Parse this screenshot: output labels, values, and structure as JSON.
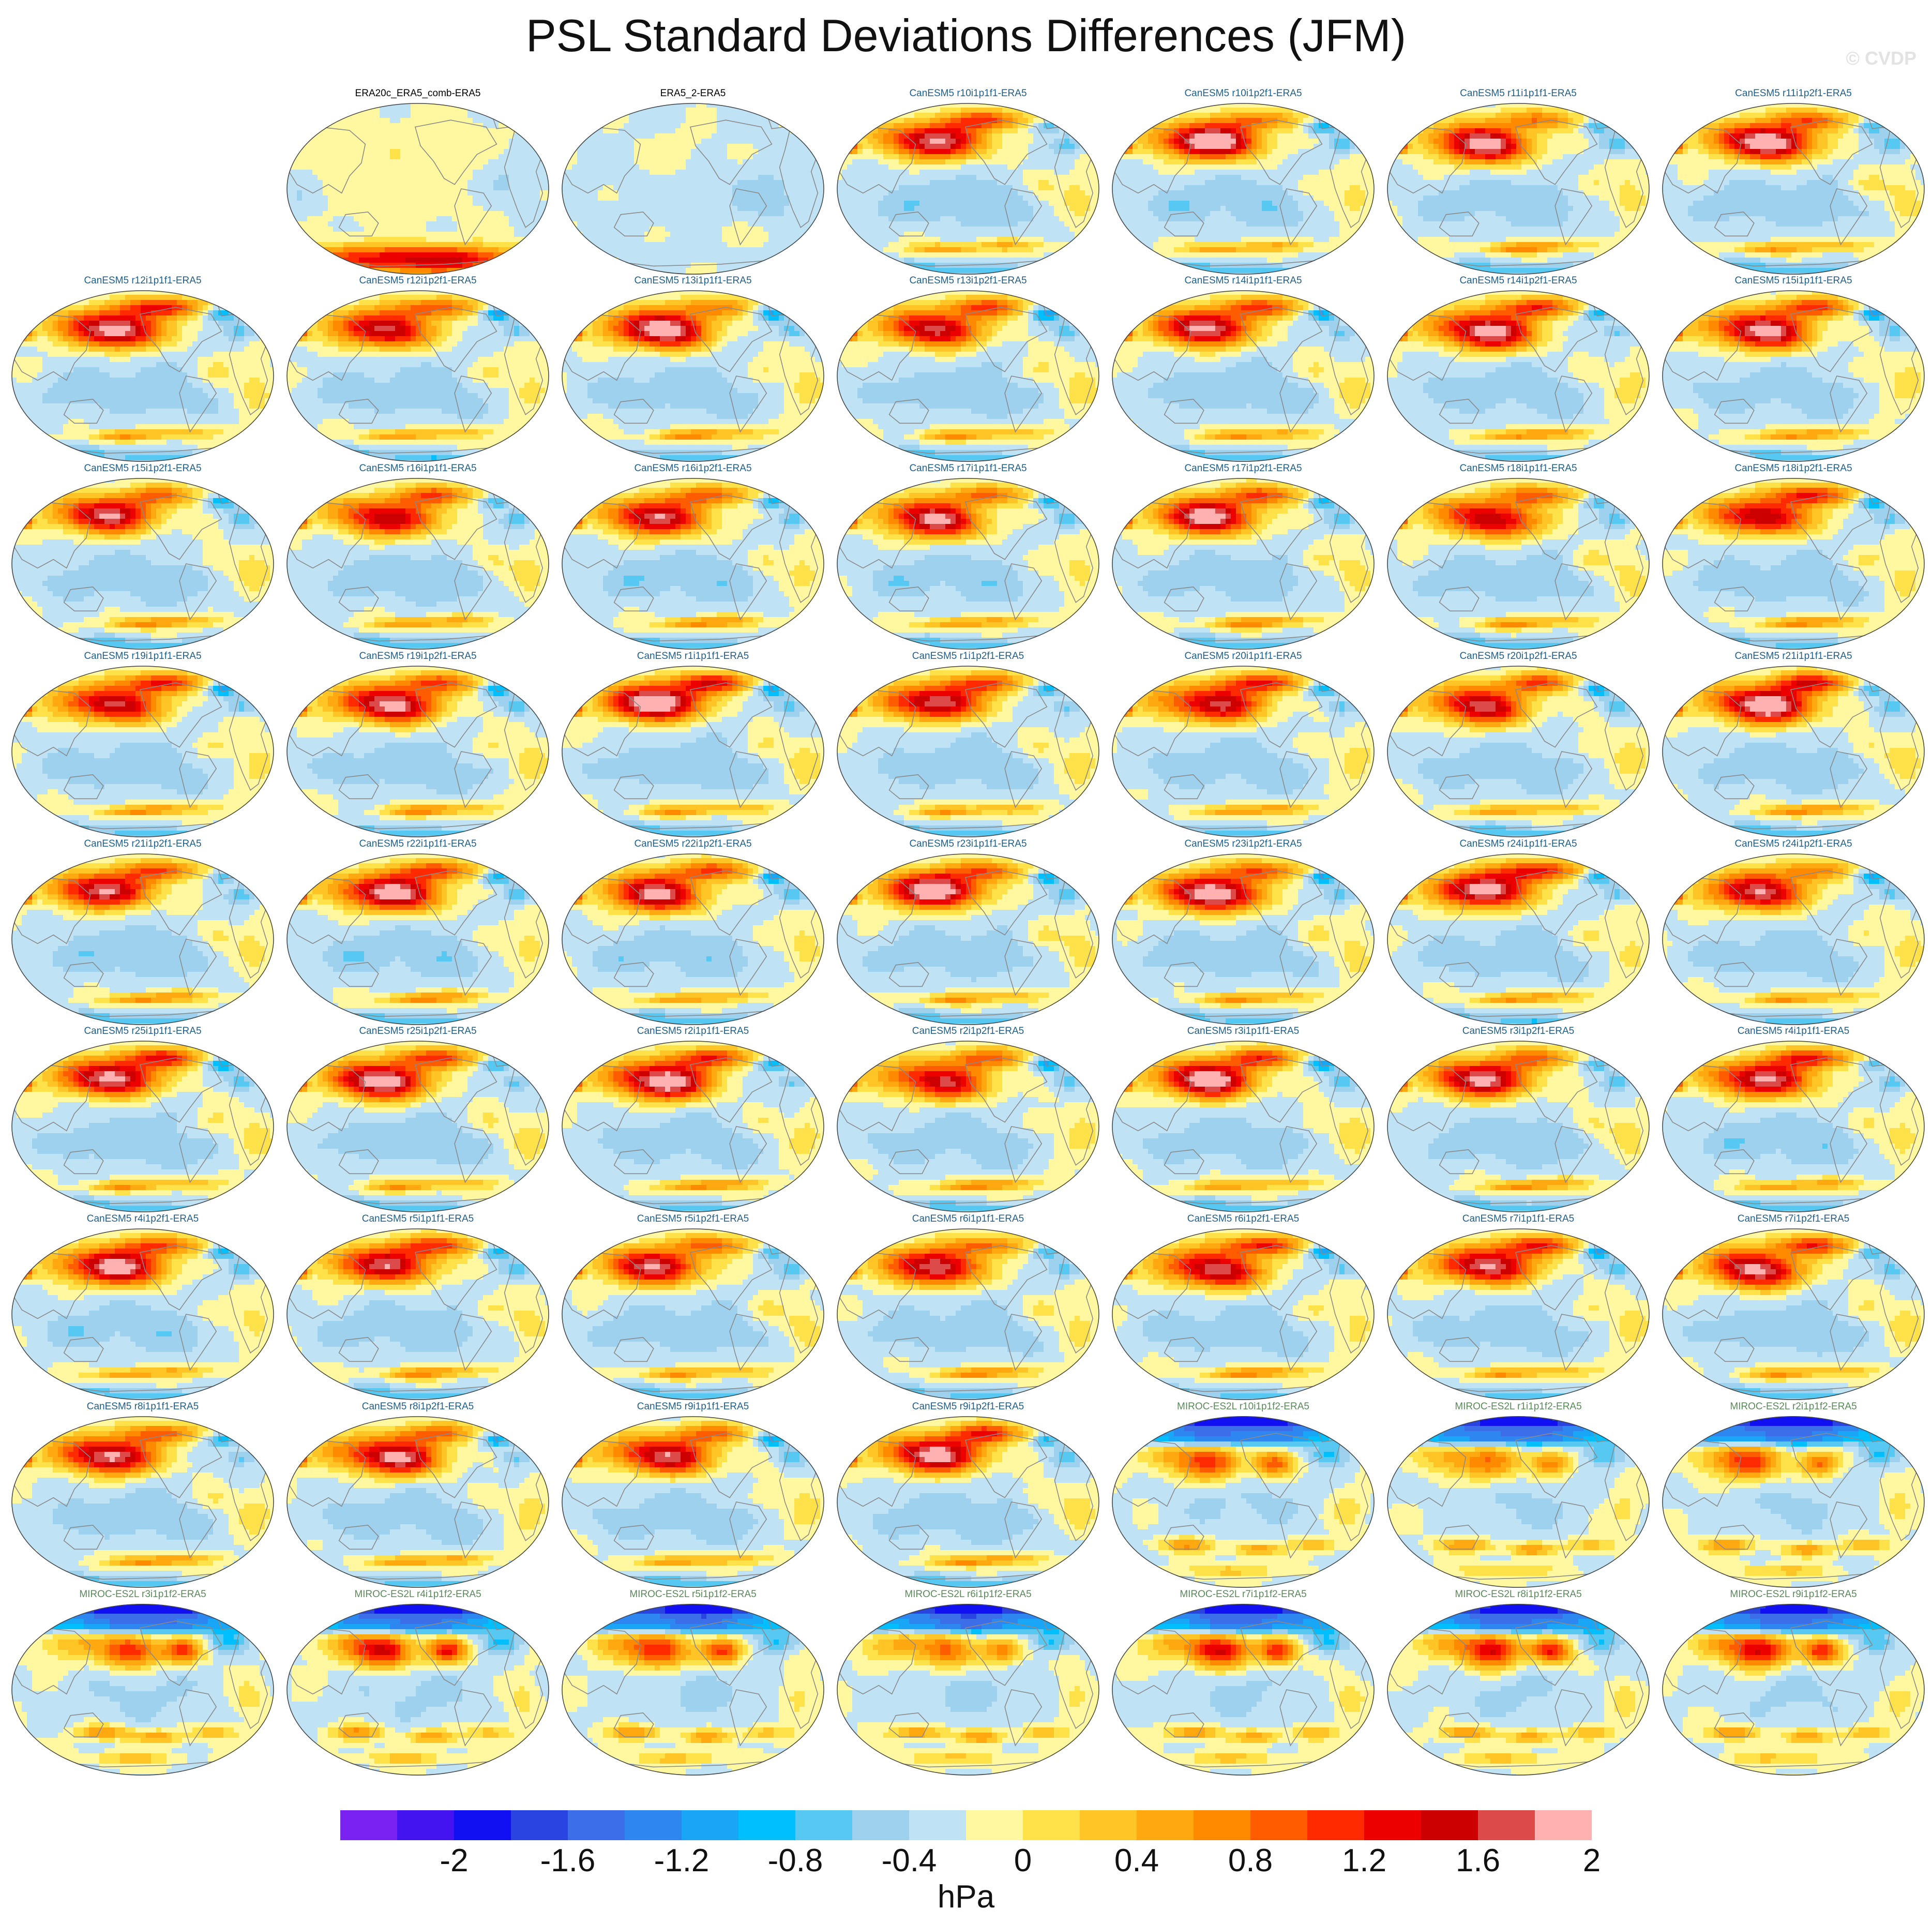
{
  "title": "PSL Standard Deviations Differences (JFM)",
  "watermark": "© CVDP",
  "colorbar": {
    "colors": [
      "#7a22f2",
      "#4414f0",
      "#1010f2",
      "#2a44e2",
      "#3b6ee8",
      "#2e86f0",
      "#1aa6f6",
      "#00bfff",
      "#56c8f2",
      "#9dd1ee",
      "#bfe3f5",
      "#fff8a0",
      "#ffe14a",
      "#ffc426",
      "#ffa810",
      "#ff8a00",
      "#ff5c00",
      "#ff2a00",
      "#ec0000",
      "#cc0000",
      "#dc4a4a",
      "#ffb0b0"
    ],
    "tick_labels": [
      "-2",
      "-1.6",
      "-1.2",
      "-0.8",
      "-0.4",
      "0",
      "0.4",
      "0.8",
      "1.2",
      "1.6",
      "2"
    ],
    "unit": "hPa"
  },
  "panels": [
    {
      "title": "ERA20c_ERA5_comb-ERA5",
      "kind": "obs1"
    },
    {
      "title": "ERA5_2-ERA5",
      "kind": "obs2"
    },
    {
      "title": "CanESM5 r10i1p1f1-ERA5",
      "kind": "can"
    },
    {
      "title": "CanESM5 r10i1p2f1-ERA5",
      "kind": "can"
    },
    {
      "title": "CanESM5 r11i1p1f1-ERA5",
      "kind": "can"
    },
    {
      "title": "CanESM5 r11i1p2f1-ERA5",
      "kind": "can"
    },
    {
      "title": "CanESM5 r12i1p1f1-ERA5",
      "kind": "can"
    },
    {
      "title": "CanESM5 r12i1p2f1-ERA5",
      "kind": "can"
    },
    {
      "title": "CanESM5 r13i1p1f1-ERA5",
      "kind": "can"
    },
    {
      "title": "CanESM5 r13i1p2f1-ERA5",
      "kind": "can"
    },
    {
      "title": "CanESM5 r14i1p1f1-ERA5",
      "kind": "can"
    },
    {
      "title": "CanESM5 r14i1p2f1-ERA5",
      "kind": "can"
    },
    {
      "title": "CanESM5 r15i1p1f1-ERA5",
      "kind": "can"
    },
    {
      "title": "CanESM5 r15i1p2f1-ERA5",
      "kind": "can"
    },
    {
      "title": "CanESM5 r16i1p1f1-ERA5",
      "kind": "can"
    },
    {
      "title": "CanESM5 r16i1p2f1-ERA5",
      "kind": "can"
    },
    {
      "title": "CanESM5 r17i1p1f1-ERA5",
      "kind": "can"
    },
    {
      "title": "CanESM5 r17i1p2f1-ERA5",
      "kind": "can"
    },
    {
      "title": "CanESM5 r18i1p1f1-ERA5",
      "kind": "can"
    },
    {
      "title": "CanESM5 r18i1p2f1-ERA5",
      "kind": "can"
    },
    {
      "title": "CanESM5 r19i1p1f1-ERA5",
      "kind": "can"
    },
    {
      "title": "CanESM5 r19i1p2f1-ERA5",
      "kind": "can"
    },
    {
      "title": "CanESM5 r1i1p1f1-ERA5",
      "kind": "can"
    },
    {
      "title": "CanESM5 r1i1p2f1-ERA5",
      "kind": "can"
    },
    {
      "title": "CanESM5 r20i1p1f1-ERA5",
      "kind": "can"
    },
    {
      "title": "CanESM5 r20i1p2f1-ERA5",
      "kind": "can"
    },
    {
      "title": "CanESM5 r21i1p1f1-ERA5",
      "kind": "can"
    },
    {
      "title": "CanESM5 r21i1p2f1-ERA5",
      "kind": "can"
    },
    {
      "title": "CanESM5 r22i1p1f1-ERA5",
      "kind": "can"
    },
    {
      "title": "CanESM5 r22i1p2f1-ERA5",
      "kind": "can"
    },
    {
      "title": "CanESM5 r23i1p1f1-ERA5",
      "kind": "can"
    },
    {
      "title": "CanESM5 r23i1p2f1-ERA5",
      "kind": "can"
    },
    {
      "title": "CanESM5 r24i1p1f1-ERA5",
      "kind": "can"
    },
    {
      "title": "CanESM5 r24i1p2f1-ERA5",
      "kind": "can"
    },
    {
      "title": "CanESM5 r25i1p1f1-ERA5",
      "kind": "can"
    },
    {
      "title": "CanESM5 r25i1p2f1-ERA5",
      "kind": "can"
    },
    {
      "title": "CanESM5 r2i1p1f1-ERA5",
      "kind": "can"
    },
    {
      "title": "CanESM5 r2i1p2f1-ERA5",
      "kind": "can"
    },
    {
      "title": "CanESM5 r3i1p1f1-ERA5",
      "kind": "can"
    },
    {
      "title": "CanESM5 r3i1p2f1-ERA5",
      "kind": "can"
    },
    {
      "title": "CanESM5 r4i1p1f1-ERA5",
      "kind": "can"
    },
    {
      "title": "CanESM5 r4i1p2f1-ERA5",
      "kind": "can"
    },
    {
      "title": "CanESM5 r5i1p1f1-ERA5",
      "kind": "can"
    },
    {
      "title": "CanESM5 r5i1p2f1-ERA5",
      "kind": "can"
    },
    {
      "title": "CanESM5 r6i1p1f1-ERA5",
      "kind": "can"
    },
    {
      "title": "CanESM5 r6i1p2f1-ERA5",
      "kind": "can"
    },
    {
      "title": "CanESM5 r7i1p1f1-ERA5",
      "kind": "can"
    },
    {
      "title": "CanESM5 r7i1p2f1-ERA5",
      "kind": "can"
    },
    {
      "title": "CanESM5 r8i1p1f1-ERA5",
      "kind": "can"
    },
    {
      "title": "CanESM5 r8i1p2f1-ERA5",
      "kind": "can"
    },
    {
      "title": "CanESM5 r9i1p1f1-ERA5",
      "kind": "can"
    },
    {
      "title": "CanESM5 r9i1p2f1-ERA5",
      "kind": "can"
    },
    {
      "title": "MIROC-ES2L r10i1p1f2-ERA5",
      "kind": "miroc"
    },
    {
      "title": "MIROC-ES2L r1i1p1f2-ERA5",
      "kind": "miroc"
    },
    {
      "title": "MIROC-ES2L r2i1p1f2-ERA5",
      "kind": "miroc"
    },
    {
      "title": "MIROC-ES2L r3i1p1f2-ERA5",
      "kind": "miroc"
    },
    {
      "title": "MIROC-ES2L r4i1p1f2-ERA5",
      "kind": "miroc"
    },
    {
      "title": "MIROC-ES2L r5i1p1f2-ERA5",
      "kind": "miroc"
    },
    {
      "title": "MIROC-ES2L r6i1p1f2-ERA5",
      "kind": "miroc"
    },
    {
      "title": "MIROC-ES2L r7i1p1f2-ERA5",
      "kind": "miroc"
    },
    {
      "title": "MIROC-ES2L r8i1p1f2-ERA5",
      "kind": "miroc"
    },
    {
      "title": "MIROC-ES2L r9i1p1f2-ERA5",
      "kind": "miroc"
    }
  ],
  "title_colors": {
    "obs": "#000000",
    "can": "#1f5f8b",
    "miroc": "#5a8a5a"
  }
}
